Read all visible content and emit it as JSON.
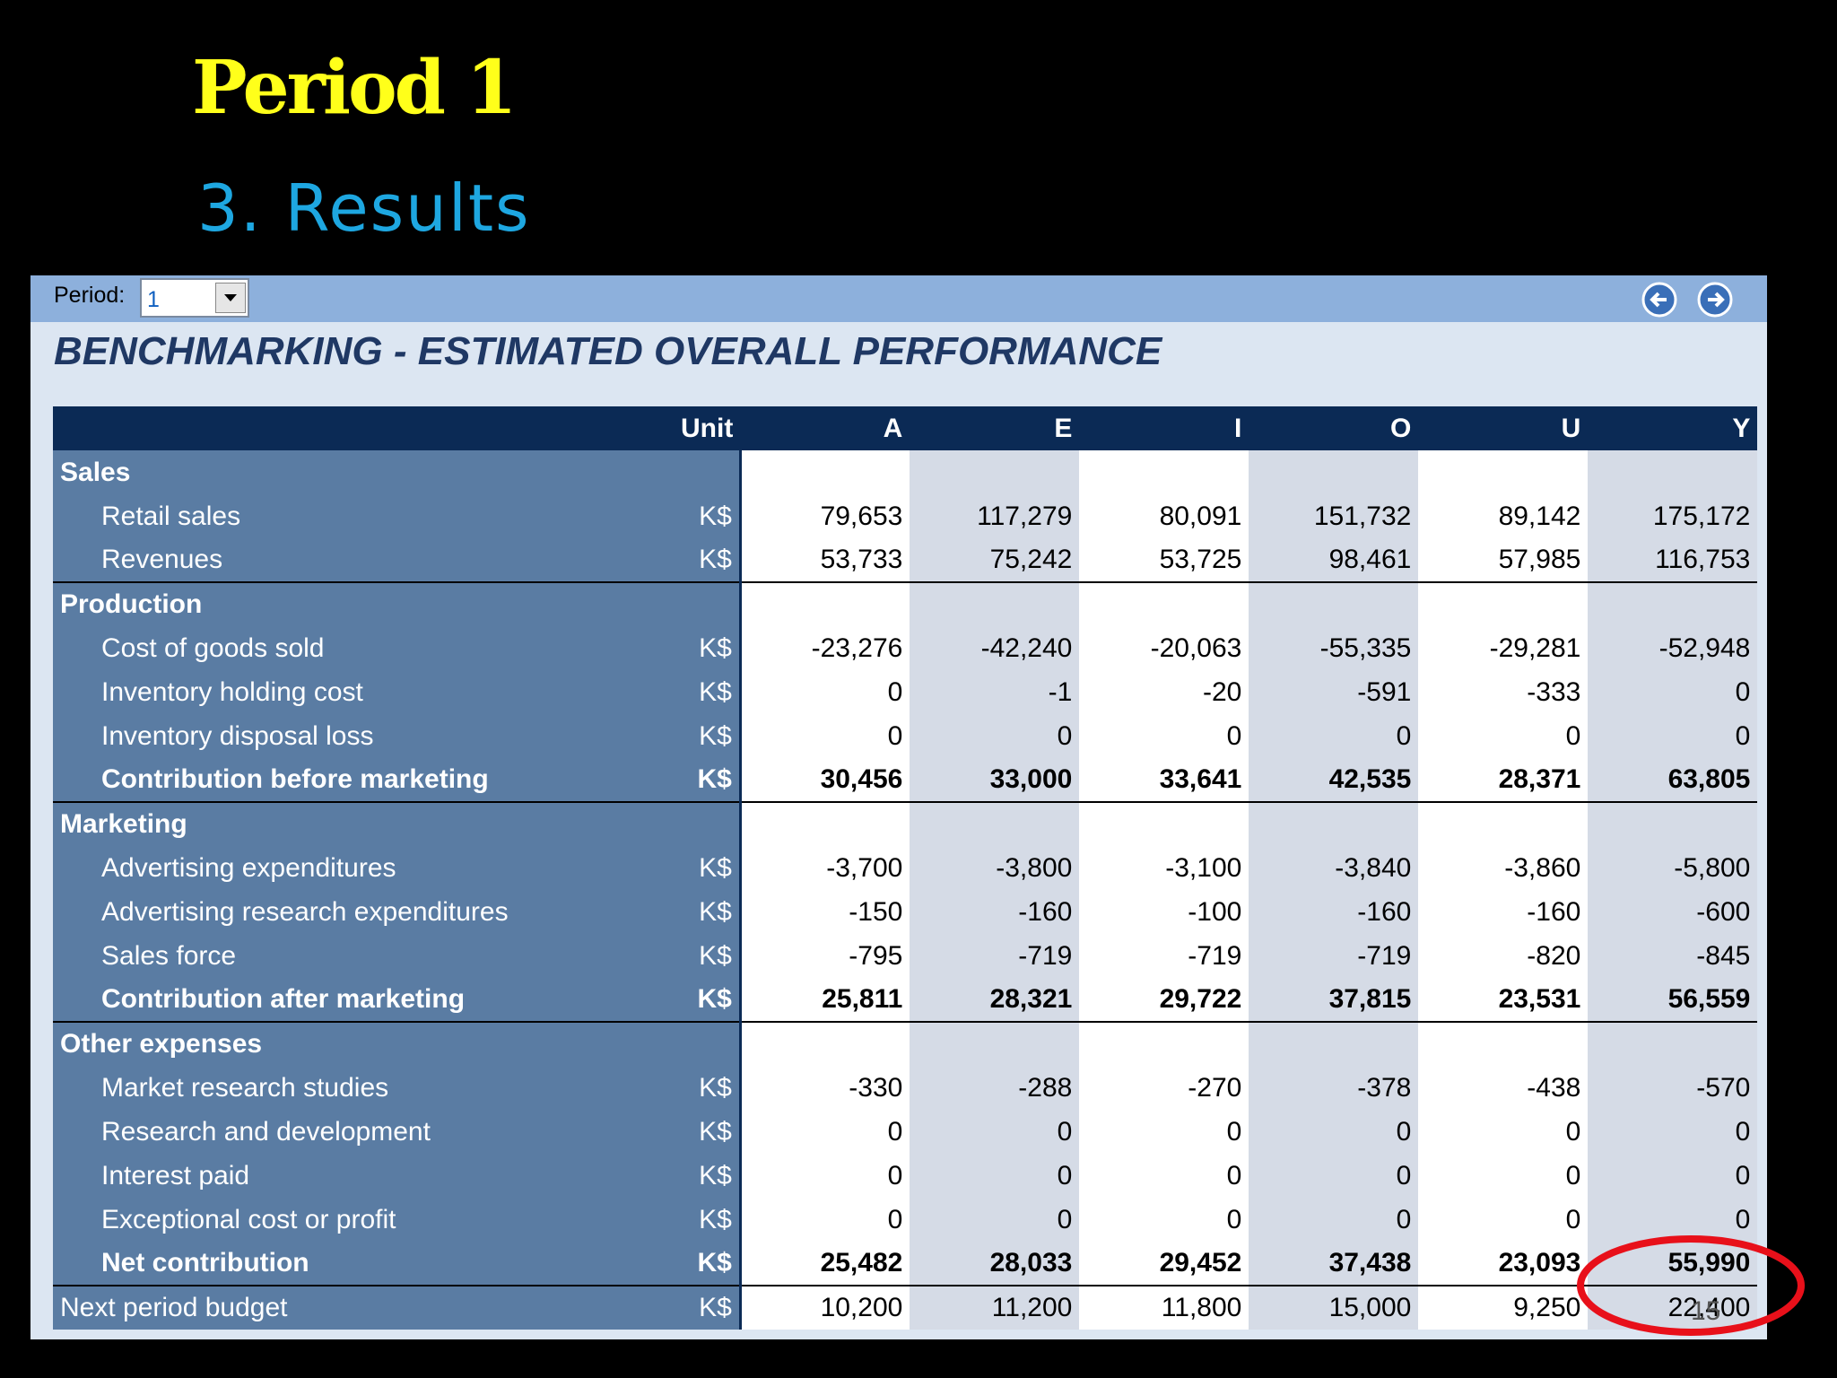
{
  "slide": {
    "title": "Period 1",
    "subtitle": "3. Results",
    "page_number": "15"
  },
  "toolbar": {
    "period_label": "Period:",
    "period_value": "1"
  },
  "table": {
    "title": "BENCHMARKING - ESTIMATED OVERALL PERFORMANCE",
    "columns": [
      "Unit",
      "A",
      "E",
      "I",
      "O",
      "U",
      "Y"
    ],
    "sections": [
      {
        "title": "Sales",
        "rows": [
          {
            "label": "Retail sales",
            "unit": "K$",
            "values": [
              "79,653",
              "117,279",
              "80,091",
              "151,732",
              "89,142",
              "175,172"
            ]
          },
          {
            "label": "Revenues",
            "unit": "K$",
            "values": [
              "53,733",
              "75,242",
              "53,725",
              "98,461",
              "57,985",
              "116,753"
            ]
          }
        ]
      },
      {
        "title": "Production",
        "rows": [
          {
            "label": "Cost of goods sold",
            "unit": "K$",
            "values": [
              "-23,276",
              "-42,240",
              "-20,063",
              "-55,335",
              "-29,281",
              "-52,948"
            ]
          },
          {
            "label": "Inventory holding cost",
            "unit": "K$",
            "values": [
              "0",
              "-1",
              "-20",
              "-591",
              "-333",
              "0"
            ]
          },
          {
            "label": "Inventory disposal loss",
            "unit": "K$",
            "values": [
              "0",
              "0",
              "0",
              "0",
              "0",
              "0"
            ]
          },
          {
            "label": "Contribution before marketing",
            "unit": "K$",
            "bold": true,
            "values": [
              "30,456",
              "33,000",
              "33,641",
              "42,535",
              "28,371",
              "63,805"
            ]
          }
        ]
      },
      {
        "title": "Marketing",
        "rows": [
          {
            "label": "Advertising expenditures",
            "unit": "K$",
            "values": [
              "-3,700",
              "-3,800",
              "-3,100",
              "-3,840",
              "-3,860",
              "-5,800"
            ]
          },
          {
            "label": "Advertising research expenditures",
            "unit": "K$",
            "values": [
              "-150",
              "-160",
              "-100",
              "-160",
              "-160",
              "-600"
            ]
          },
          {
            "label": "Sales force",
            "unit": "K$",
            "values": [
              "-795",
              "-719",
              "-719",
              "-719",
              "-820",
              "-845"
            ]
          },
          {
            "label": "Contribution after marketing",
            "unit": "K$",
            "bold": true,
            "values": [
              "25,811",
              "28,321",
              "29,722",
              "37,815",
              "23,531",
              "56,559"
            ]
          }
        ]
      },
      {
        "title": "Other expenses",
        "rows": [
          {
            "label": "Market research studies",
            "unit": "K$",
            "values": [
              "-330",
              "-288",
              "-270",
              "-378",
              "-438",
              "-570"
            ]
          },
          {
            "label": "Research and development",
            "unit": "K$",
            "values": [
              "0",
              "0",
              "0",
              "0",
              "0",
              "0"
            ]
          },
          {
            "label": "Interest paid",
            "unit": "K$",
            "values": [
              "0",
              "0",
              "0",
              "0",
              "0",
              "0"
            ]
          },
          {
            "label": "Exceptional cost or profit",
            "unit": "K$",
            "values": [
              "0",
              "0",
              "0",
              "0",
              "0",
              "0"
            ]
          },
          {
            "label": "Net contribution",
            "unit": "K$",
            "bold": true,
            "values": [
              "25,482",
              "28,033",
              "29,452",
              "37,438",
              "23,093",
              "55,990"
            ]
          }
        ]
      }
    ],
    "budget_row": {
      "label": "Next period budget",
      "unit": "K$",
      "values": [
        "10,200",
        "11,200",
        "11,800",
        "15,000",
        "9,250",
        "22,400"
      ]
    }
  }
}
